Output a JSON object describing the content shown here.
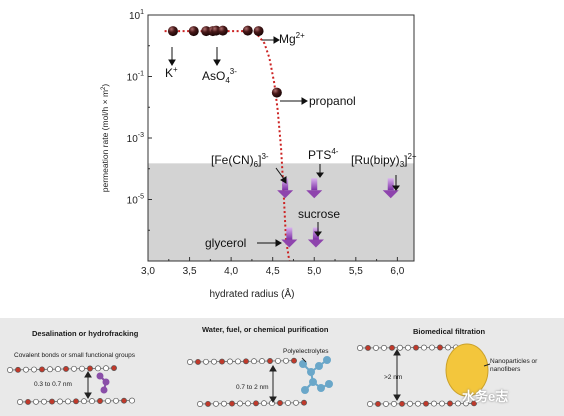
{
  "chart_data": {
    "type": "scatter",
    "x": [
      3.3,
      3.55,
      3.7,
      3.78,
      3.82,
      3.9,
      4.2,
      4.33,
      4.55,
      4.65,
      5.0,
      5.92,
      4.7,
      5.02
    ],
    "y": [
      3.0,
      3.0,
      3.0,
      3.0,
      3.1,
      3.1,
      3.1,
      3.0,
      0.03,
      2e-05,
      2e-05,
      2e-05,
      5e-07,
      5e-07
    ],
    "point_kinds": [
      "sphere",
      "sphere",
      "sphere",
      "sphere",
      "sphere",
      "sphere",
      "sphere",
      "sphere",
      "sphere",
      "arrow",
      "arrow",
      "arrow",
      "arrow",
      "arrow"
    ],
    "xlabel": "hydrated radius (Å)",
    "ylabel_pre": "permeation rate (mol/h × m",
    "ylabel_sup": "2",
    "ylabel_post": ")",
    "xlim": [
      3.0,
      6.2
    ],
    "ylim_exp": [
      -7,
      1
    ],
    "x_ticks": [
      "3,0",
      "3,5",
      "4,0",
      "4,5",
      "5,0",
      "5,5",
      "6,0"
    ],
    "y_ticks": [
      {
        "base": "10",
        "exp": "1"
      },
      {
        "base": "10",
        "exp": "-1"
      },
      {
        "base": "10",
        "exp": "-3"
      },
      {
        "base": "10",
        "exp": "-5"
      }
    ],
    "shaded_region_below": 0.00015,
    "fit_curve": {
      "x": [
        3.2,
        3.55,
        3.9,
        4.2,
        4.3,
        4.4,
        4.46,
        4.52,
        4.56,
        4.6,
        4.63,
        4.66,
        4.7
      ],
      "y": [
        3.0,
        3.0,
        3.0,
        3.0,
        2.6,
        1.2,
        0.4,
        0.06,
        0.008,
        0.0005,
        2e-05,
        5e-07,
        2e-08
      ]
    },
    "labels": {
      "mg": {
        "base": "Mg",
        "sup": "2+"
      },
      "k": {
        "base": "K",
        "sup": "+"
      },
      "aso4": {
        "base": "AsO",
        "sub": "4",
        "sup": "3-"
      },
      "propanol": "propanol",
      "fecn": {
        "pre": "[Fe(CN)",
        "sub": "6",
        "post": "]",
        "sup": "3-"
      },
      "pts": {
        "base": "PTS",
        "sup": "4-"
      },
      "rubipy": {
        "pre": "[Ru(bipy)",
        "sub": "3",
        "post": "]",
        "sup": "2+"
      },
      "sucrose": "sucrose",
      "glycerol": "glycerol"
    },
    "grid": false,
    "colors": {
      "sphere": "#3a1414",
      "fit": "#cc2222",
      "arrow": "#8e44ad",
      "shade": "#d3d3d3"
    }
  },
  "bottom": {
    "sections": [
      {
        "title": "Desalination or hydrofracking",
        "note": "Covalent bonds or small functional groups",
        "gap": "0.3 to 0.7 nm"
      },
      {
        "title": "Water, fuel, or chemical purification",
        "note": "Polyelectrolytes",
        "gap": "0.7 to 2 nm"
      },
      {
        "title": "Biomedical filtration",
        "note": "Nanoparticles or nanofibers",
        "gap": ">2 nm"
      }
    ],
    "watermark": "水务e志"
  }
}
